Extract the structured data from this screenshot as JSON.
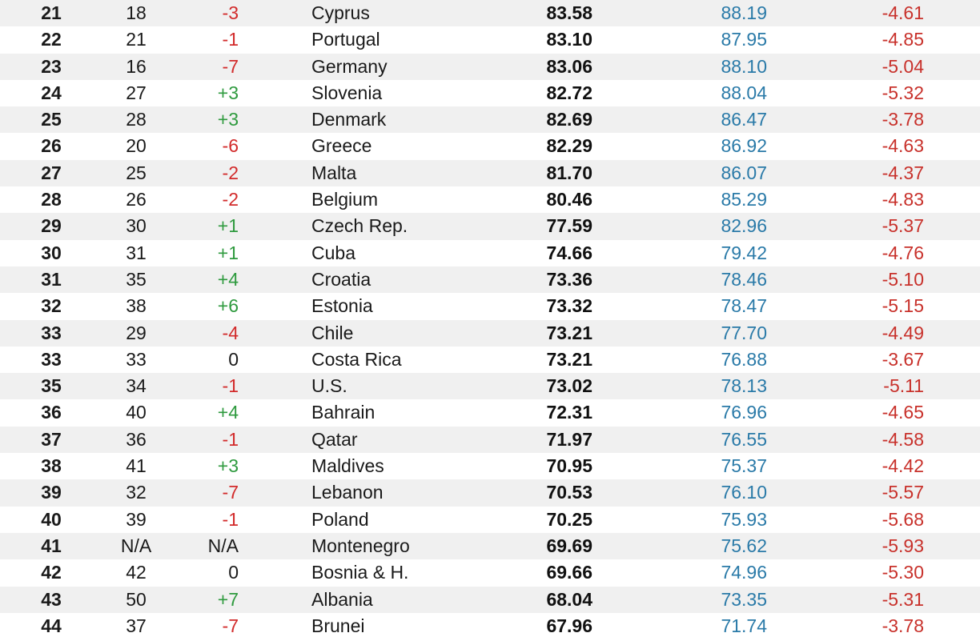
{
  "colors": {
    "positive": "#2e9a3e",
    "negative": "#d22a2a",
    "blue_col": "#2a7aa8",
    "red_col": "#c8312b",
    "row_shade": "#f0f0f0"
  },
  "rows": [
    {
      "rank": "21",
      "prev": "18",
      "change": "-3",
      "country": "Cyprus",
      "score": "83.58",
      "s1": "88.19",
      "s2": "-4.61"
    },
    {
      "rank": "22",
      "prev": "21",
      "change": "-1",
      "country": "Portugal",
      "score": "83.10",
      "s1": "87.95",
      "s2": "-4.85"
    },
    {
      "rank": "23",
      "prev": "16",
      "change": "-7",
      "country": "Germany",
      "score": "83.06",
      "s1": "88.10",
      "s2": "-5.04"
    },
    {
      "rank": "24",
      "prev": "27",
      "change": "+3",
      "country": "Slovenia",
      "score": "82.72",
      "s1": "88.04",
      "s2": "-5.32"
    },
    {
      "rank": "25",
      "prev": "28",
      "change": "+3",
      "country": "Denmark",
      "score": "82.69",
      "s1": "86.47",
      "s2": "-3.78"
    },
    {
      "rank": "26",
      "prev": "20",
      "change": "-6",
      "country": "Greece",
      "score": "82.29",
      "s1": "86.92",
      "s2": "-4.63"
    },
    {
      "rank": "27",
      "prev": "25",
      "change": "-2",
      "country": "Malta",
      "score": "81.70",
      "s1": "86.07",
      "s2": "-4.37"
    },
    {
      "rank": "28",
      "prev": "26",
      "change": "-2",
      "country": "Belgium",
      "score": "80.46",
      "s1": "85.29",
      "s2": "-4.83"
    },
    {
      "rank": "29",
      "prev": "30",
      "change": "+1",
      "country": "Czech Rep.",
      "score": "77.59",
      "s1": "82.96",
      "s2": "-5.37"
    },
    {
      "rank": "30",
      "prev": "31",
      "change": "+1",
      "country": "Cuba",
      "score": "74.66",
      "s1": "79.42",
      "s2": "-4.76"
    },
    {
      "rank": "31",
      "prev": "35",
      "change": "+4",
      "country": "Croatia",
      "score": "73.36",
      "s1": "78.46",
      "s2": "-5.10"
    },
    {
      "rank": "32",
      "prev": "38",
      "change": "+6",
      "country": "Estonia",
      "score": "73.32",
      "s1": "78.47",
      "s2": "-5.15"
    },
    {
      "rank": "33",
      "prev": "29",
      "change": "-4",
      "country": "Chile",
      "score": "73.21",
      "s1": "77.70",
      "s2": "-4.49"
    },
    {
      "rank": "33",
      "prev": "33",
      "change": "0",
      "country": "Costa Rica",
      "score": "73.21",
      "s1": "76.88",
      "s2": "-3.67"
    },
    {
      "rank": "35",
      "prev": "34",
      "change": "-1",
      "country": "U.S.",
      "score": "73.02",
      "s1": "78.13",
      "s2": "-5.11"
    },
    {
      "rank": "36",
      "prev": "40",
      "change": "+4",
      "country": "Bahrain",
      "score": "72.31",
      "s1": "76.96",
      "s2": "-4.65"
    },
    {
      "rank": "37",
      "prev": "36",
      "change": "-1",
      "country": "Qatar",
      "score": "71.97",
      "s1": "76.55",
      "s2": "-4.58"
    },
    {
      "rank": "38",
      "prev": "41",
      "change": "+3",
      "country": "Maldives",
      "score": "70.95",
      "s1": "75.37",
      "s2": "-4.42"
    },
    {
      "rank": "39",
      "prev": "32",
      "change": "-7",
      "country": "Lebanon",
      "score": "70.53",
      "s1": "76.10",
      "s2": "-5.57"
    },
    {
      "rank": "40",
      "prev": "39",
      "change": "-1",
      "country": "Poland",
      "score": "70.25",
      "s1": "75.93",
      "s2": "-5.68"
    },
    {
      "rank": "41",
      "prev": "N/A",
      "change": "N/A",
      "country": "Montenegro",
      "score": "69.69",
      "s1": "75.62",
      "s2": "-5.93"
    },
    {
      "rank": "42",
      "prev": "42",
      "change": "0",
      "country": "Bosnia & H.",
      "score": "69.66",
      "s1": "74.96",
      "s2": "-5.30"
    },
    {
      "rank": "43",
      "prev": "50",
      "change": "+7",
      "country": "Albania",
      "score": "68.04",
      "s1": "73.35",
      "s2": "-5.31"
    },
    {
      "rank": "44",
      "prev": "37",
      "change": "-7",
      "country": "Brunei",
      "score": "67.96",
      "s1": "71.74",
      "s2": "-3.78"
    }
  ]
}
